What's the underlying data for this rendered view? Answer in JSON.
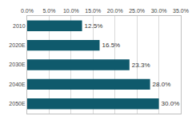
{
  "chart_data": {
    "type": "bar",
    "orientation": "horizontal",
    "categories": [
      "2010",
      "2020E",
      "2030E",
      "2040E",
      "2050E"
    ],
    "values": [
      12.5,
      16.5,
      23.3,
      28.0,
      30.0
    ],
    "value_labels": [
      "12.5%",
      "16.5%",
      "23.3%",
      "28.0%",
      "30.0%"
    ],
    "data_labels": true,
    "color": "#0f5a6c",
    "xlim": [
      0,
      35
    ],
    "xticks": [
      {
        "value": 0,
        "label": "0.0%"
      },
      {
        "value": 5,
        "label": "5.0%"
      },
      {
        "value": 10,
        "label": "10.0%"
      },
      {
        "value": 15,
        "label": "15.0%"
      },
      {
        "value": 20,
        "label": "20.0%"
      },
      {
        "value": 25,
        "label": "25.0%"
      },
      {
        "value": 30,
        "label": "30.0%"
      },
      {
        "value": 35,
        "label": "35.0%"
      }
    ],
    "grid": true
  }
}
